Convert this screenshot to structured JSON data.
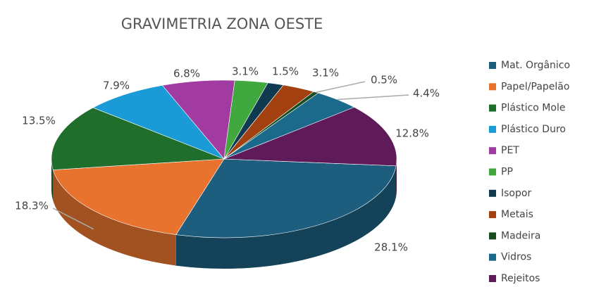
{
  "chart_data": {
    "type": "pie",
    "title": "GRAVIMETRIA ZONA OESTE",
    "categories": [
      "Mat. Orgânico",
      "Papel/Papelão",
      "Plástico Mole",
      "Plástico Duro",
      "PET",
      "PP",
      "Isopor",
      "Metais",
      "Madeira",
      "Vidros",
      "Rejeitos"
    ],
    "values": [
      28.1,
      18.3,
      13.5,
      7.9,
      6.8,
      3.1,
      1.5,
      3.1,
      0.5,
      4.4,
      12.8
    ],
    "value_labels": [
      "28.1%",
      "18.3%",
      "13.5%",
      "7.9%",
      "6.8%",
      "3.1%",
      "1.5%",
      "3.1%",
      "0.5%",
      "4.4%",
      "12.8%"
    ],
    "colors": [
      "#1d5e7e",
      "#e8732f",
      "#1f6e2b",
      "#1a9bd7",
      "#a13aa1",
      "#41a83f",
      "#103a50",
      "#a2410f",
      "#184d1f",
      "#1b6a8c",
      "#5f1b59"
    ],
    "legend": "right"
  }
}
